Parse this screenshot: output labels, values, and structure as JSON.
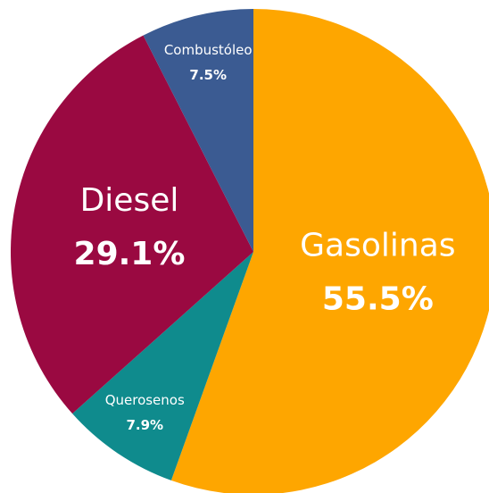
{
  "chart_data": {
    "type": "pie",
    "categories": [
      "Gasolinas",
      "Querosenos",
      "Diesel",
      "Combustóleo"
    ],
    "values": [
      55.5,
      7.9,
      29.1,
      7.5
    ],
    "value_labels": [
      "55.5%",
      "7.9%",
      "29.1%",
      "7.5%"
    ],
    "colors": [
      "#fea600",
      "#0f8b8d",
      "#9a0941",
      "#3b5b92"
    ]
  }
}
